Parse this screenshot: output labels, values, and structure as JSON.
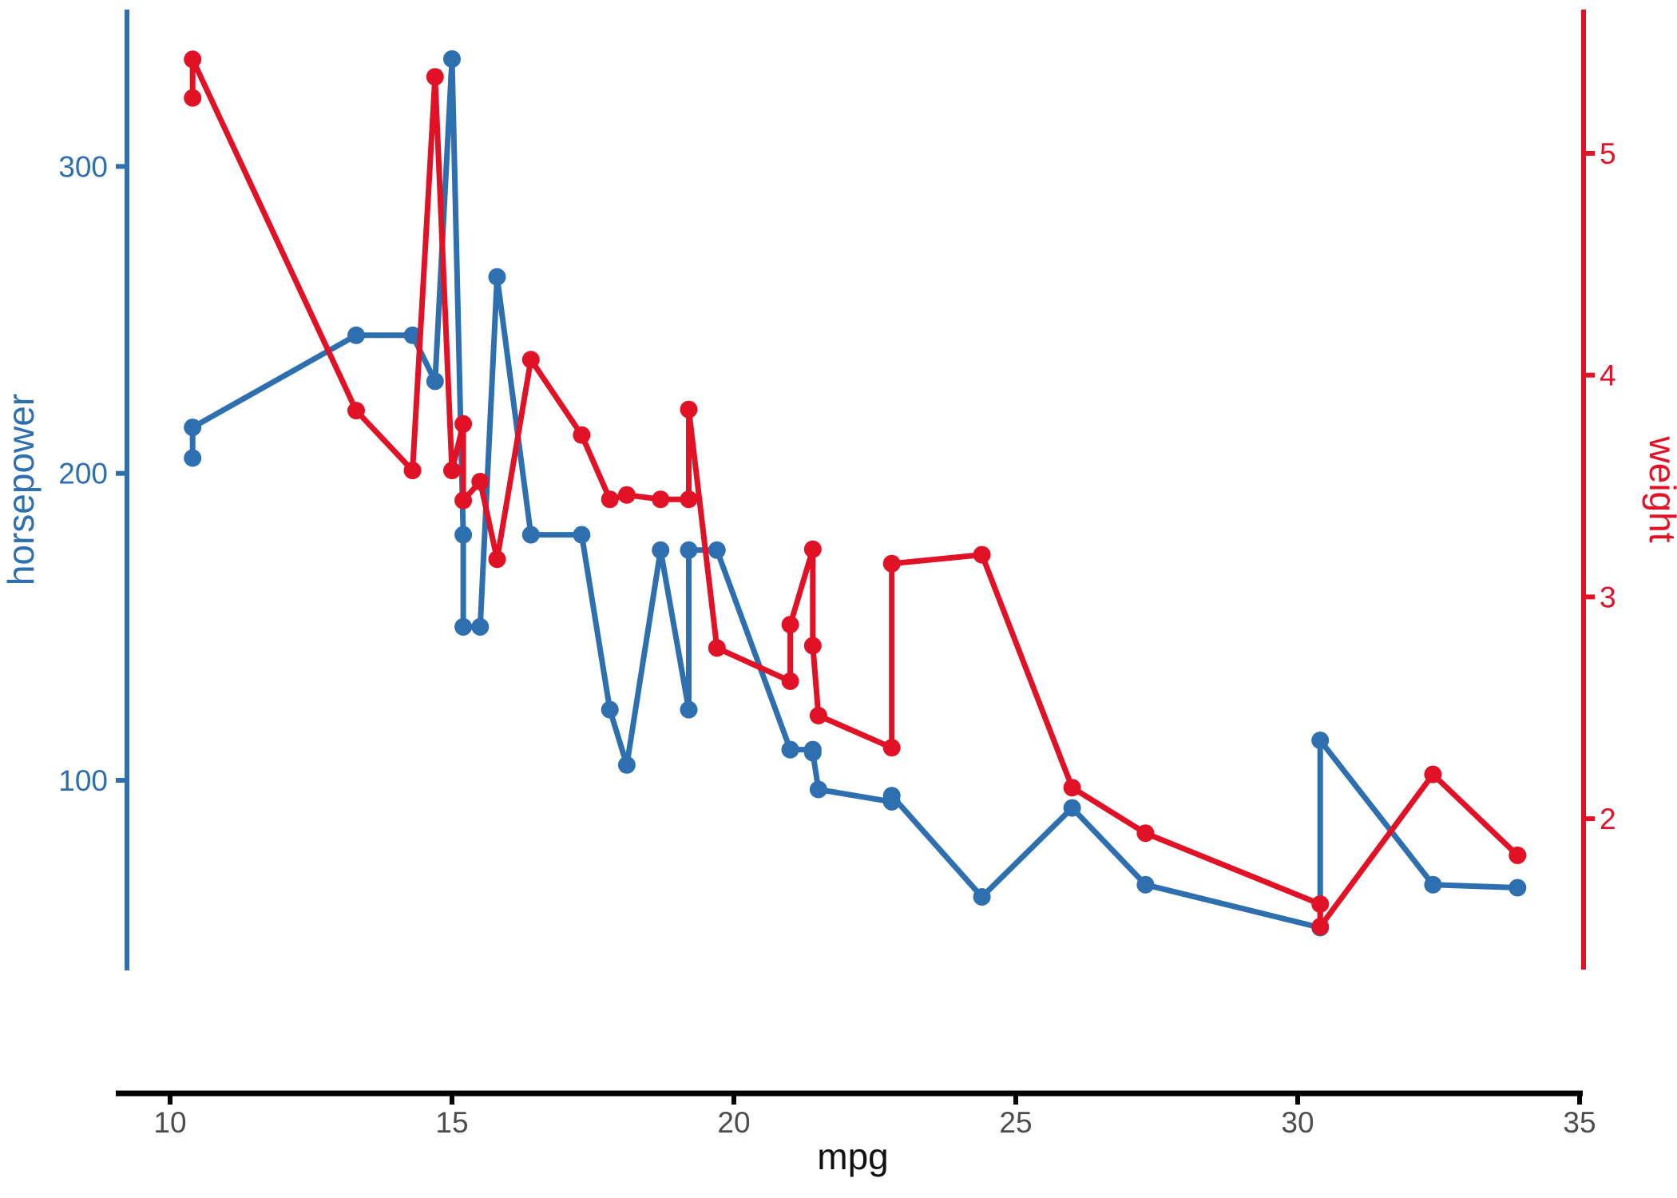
{
  "chart_data": {
    "type": "line",
    "title": "",
    "xlabel": "mpg",
    "ylabel_left": "horsepower",
    "ylabel_right": "weight",
    "grid": false,
    "legend": "none",
    "xlim": [
      9.1,
      35.1
    ],
    "ylim_left": [
      37,
      351
    ],
    "ylim_right": [
      1.45,
      5.65
    ],
    "x_ticks": [
      10,
      15,
      20,
      25,
      30,
      35
    ],
    "left_ticks": [
      100,
      200,
      300
    ],
    "right_ticks": [
      2,
      3,
      4,
      5
    ],
    "colors": {
      "horsepower": "#2E6FB0",
      "weight": "#E11226",
      "x_axis": "#000000",
      "x_tick_label": "#4D4D4D",
      "background": "#FFFFFF"
    },
    "x": [
      10.4,
      10.4,
      13.3,
      14.3,
      14.7,
      15.0,
      15.2,
      15.2,
      15.5,
      15.8,
      16.4,
      17.3,
      17.8,
      18.1,
      18.7,
      19.2,
      19.2,
      19.7,
      21.0,
      21.0,
      21.4,
      21.4,
      21.5,
      22.8,
      22.8,
      24.4,
      26.0,
      27.3,
      30.4,
      30.4,
      32.4,
      33.9
    ],
    "series": [
      {
        "name": "horsepower",
        "axis": "left",
        "marker": "circle",
        "values": [
          205,
          215,
          245,
          245,
          230,
          335,
          180,
          150,
          150,
          264,
          180,
          180,
          123,
          105,
          175,
          123,
          175,
          175,
          110,
          110,
          110,
          109,
          97,
          93,
          95,
          62,
          91,
          66,
          52,
          113,
          66,
          65
        ]
      },
      {
        "name": "weight",
        "axis": "right",
        "marker": "circle",
        "values": [
          5.25,
          5.424,
          3.84,
          3.57,
          5.345,
          3.57,
          3.78,
          3.435,
          3.52,
          3.17,
          4.07,
          3.73,
          3.44,
          3.46,
          3.44,
          3.44,
          3.845,
          2.77,
          2.62,
          2.875,
          3.215,
          2.78,
          2.465,
          2.32,
          3.15,
          3.19,
          2.14,
          1.935,
          1.615,
          1.513,
          2.2,
          1.835
        ]
      }
    ]
  }
}
